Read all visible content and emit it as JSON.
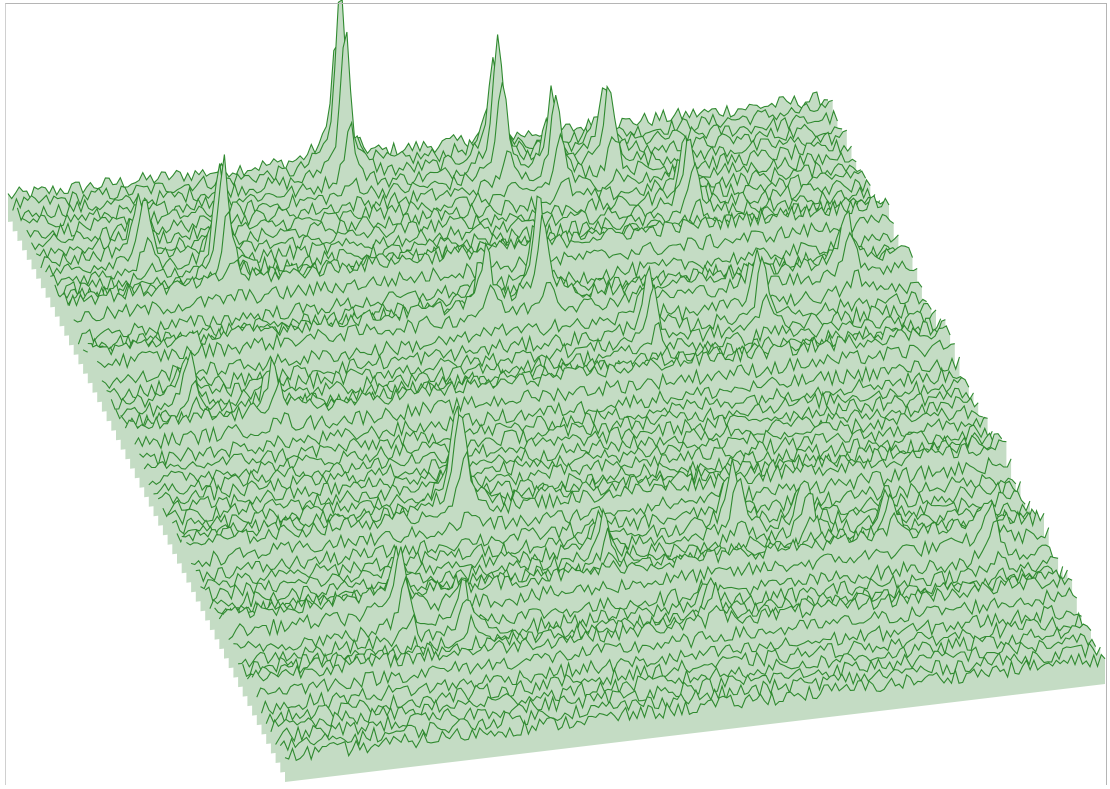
{
  "colors": {
    "background": "#ffffff",
    "frame": "#b5b5b5",
    "line": "#2f8a2f",
    "fill": "#c4dcc4"
  },
  "chart_data": {
    "type": "surface-waterfall",
    "title": "",
    "xlabel": "",
    "ylabel": "",
    "zlabel": "",
    "axes_visible": false,
    "grid": false,
    "legend": "none",
    "trace_count": 60,
    "points_per_trace": 220,
    "baseline_intensity": 1.0,
    "noise_amplitude": 0.35,
    "peaks": [
      {
        "x": 0.4,
        "y": 0.02,
        "height": 6.5
      },
      {
        "x": 0.58,
        "y": 0.05,
        "height": 4.8
      },
      {
        "x": 0.64,
        "y": 0.08,
        "height": 3.4
      },
      {
        "x": 0.71,
        "y": 0.06,
        "height": 3.0
      },
      {
        "x": 0.78,
        "y": 0.15,
        "height": 2.6
      },
      {
        "x": 0.2,
        "y": 0.18,
        "height": 4.5
      },
      {
        "x": 0.12,
        "y": 0.13,
        "height": 2.4
      },
      {
        "x": 0.55,
        "y": 0.29,
        "height": 3.8
      },
      {
        "x": 0.48,
        "y": 0.3,
        "height": 2.0
      },
      {
        "x": 0.66,
        "y": 0.36,
        "height": 2.2
      },
      {
        "x": 0.8,
        "y": 0.35,
        "height": 2.0
      },
      {
        "x": 0.92,
        "y": 0.31,
        "height": 1.8
      },
      {
        "x": 0.09,
        "y": 0.39,
        "height": 1.9
      },
      {
        "x": 0.18,
        "y": 0.42,
        "height": 1.6
      },
      {
        "x": 0.34,
        "y": 0.62,
        "height": 3.9
      },
      {
        "x": 0.48,
        "y": 0.73,
        "height": 1.6
      },
      {
        "x": 0.65,
        "y": 0.7,
        "height": 2.2
      },
      {
        "x": 0.73,
        "y": 0.72,
        "height": 1.8
      },
      {
        "x": 0.82,
        "y": 0.75,
        "height": 1.6
      },
      {
        "x": 0.21,
        "y": 0.8,
        "height": 2.4
      },
      {
        "x": 0.28,
        "y": 0.82,
        "height": 1.6
      },
      {
        "x": 0.93,
        "y": 0.8,
        "height": 1.5
      },
      {
        "x": 0.57,
        "y": 0.85,
        "height": 1.4
      }
    ],
    "ridges": [
      {
        "y": 0.22,
        "height": 0.9
      },
      {
        "y": 0.31,
        "height": 0.8
      },
      {
        "y": 0.44,
        "height": 0.7
      },
      {
        "y": 0.64,
        "height": 0.6
      },
      {
        "y": 0.78,
        "height": 0.8
      },
      {
        "y": 0.88,
        "height": 0.6
      }
    ]
  }
}
